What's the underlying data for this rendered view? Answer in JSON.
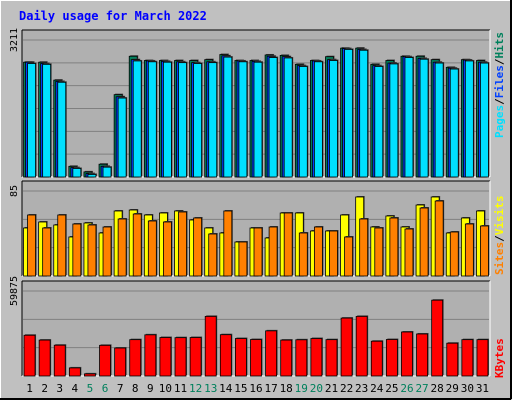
{
  "title": "Daily usage for March 2022",
  "colors": {
    "background": "#c0c0c0",
    "plot_background": "#b0b0b0",
    "title": "#0000ff",
    "hits": "#00805c",
    "files": "#0040ff",
    "pages": "#00e0ff",
    "visits": "#ffff00",
    "sites": "#ff8000",
    "kbytes": "#ff0000",
    "weekend_label": "#00805c",
    "weekday_label": "#000000"
  },
  "legend": {
    "pages": "Pages",
    "files": "Files",
    "hits": "Hits",
    "sites": "Sites",
    "visits": "Visits",
    "kbytes": "KBytes",
    "sep": "/"
  },
  "chart_data": [
    {
      "type": "bar",
      "panel": "hits-files-pages",
      "categories": [
        "1",
        "2",
        "3",
        "4",
        "5",
        "6",
        "7",
        "8",
        "9",
        "10",
        "11",
        "12",
        "13",
        "14",
        "15",
        "16",
        "17",
        "18",
        "19",
        "20",
        "21",
        "22",
        "23",
        "24",
        "25",
        "26",
        "27",
        "28",
        "29",
        "30",
        "31"
      ],
      "weekend": [
        "5",
        "6",
        "12",
        "13",
        "19",
        "20",
        "26",
        "27"
      ],
      "ylim": [
        0,
        3211
      ],
      "ytick_label": "3211",
      "series": [
        {
          "name": "Hits",
          "values": [
            2690,
            2690,
            2270,
            250,
            120,
            300,
            1930,
            2830,
            2730,
            2730,
            2730,
            2730,
            2750,
            2870,
            2730,
            2730,
            2860,
            2850,
            2640,
            2730,
            2820,
            3020,
            3020,
            2640,
            2730,
            2830,
            2830,
            2750,
            2570,
            2750,
            2730
          ]
        },
        {
          "name": "Files",
          "values": [
            2690,
            2660,
            2240,
            220,
            80,
            250,
            1880,
            2750,
            2720,
            2710,
            2700,
            2680,
            2700,
            2840,
            2720,
            2710,
            2830,
            2820,
            2610,
            2720,
            2750,
            3010,
            2990,
            2610,
            2670,
            2820,
            2780,
            2690,
            2550,
            2740,
            2690
          ]
        },
        {
          "name": "Pages",
          "values": [
            2660,
            2640,
            2220,
            200,
            60,
            230,
            1850,
            2720,
            2700,
            2690,
            2680,
            2660,
            2680,
            2810,
            2700,
            2690,
            2800,
            2790,
            2590,
            2700,
            2730,
            2990,
            2970,
            2590,
            2650,
            2800,
            2760,
            2670,
            2530,
            2720,
            2670
          ]
        }
      ]
    },
    {
      "type": "bar",
      "panel": "visits-sites",
      "categories": [
        "1",
        "2",
        "3",
        "4",
        "5",
        "6",
        "7",
        "8",
        "9",
        "10",
        "11",
        "12",
        "13",
        "14",
        "15",
        "16",
        "17",
        "18",
        "19",
        "20",
        "21",
        "22",
        "23",
        "24",
        "25",
        "26",
        "27",
        "28",
        "29",
        "30",
        "31"
      ],
      "ylim": [
        0,
        85
      ],
      "ytick_label": "85",
      "series": [
        {
          "name": "Visits",
          "values": [
            48,
            54,
            51,
            39,
            53,
            43,
            65,
            66,
            61,
            63,
            65,
            56,
            48,
            43,
            34,
            48,
            38,
            63,
            63,
            45,
            45,
            61,
            79,
            49,
            60,
            49,
            71,
            79,
            43,
            58,
            65
          ]
        },
        {
          "name": "Sites",
          "values": [
            61,
            48,
            61,
            52,
            51,
            49,
            57,
            62,
            55,
            54,
            64,
            58,
            42,
            65,
            34,
            48,
            49,
            63,
            43,
            49,
            45,
            39,
            57,
            48,
            58,
            47,
            68,
            75,
            44,
            52,
            50
          ]
        }
      ]
    },
    {
      "type": "bar",
      "panel": "kbytes",
      "categories": [
        "1",
        "2",
        "3",
        "4",
        "5",
        "6",
        "7",
        "8",
        "9",
        "10",
        "11",
        "12",
        "13",
        "14",
        "15",
        "16",
        "17",
        "18",
        "19",
        "20",
        "21",
        "22",
        "23",
        "24",
        "25",
        "26",
        "27",
        "28",
        "29",
        "30",
        "31"
      ],
      "ylim": [
        0,
        59875
      ],
      "ytick_label": "59875",
      "series": [
        {
          "name": "KBytes",
          "values": [
            28700,
            25300,
            21700,
            5700,
            1500,
            21600,
            19700,
            25600,
            29000,
            27100,
            27000,
            27100,
            42000,
            29100,
            26400,
            25700,
            31800,
            25300,
            25500,
            26400,
            25600,
            40800,
            42000,
            24500,
            25700,
            31000,
            29600,
            53400,
            23100,
            25600,
            25600
          ]
        }
      ]
    }
  ]
}
